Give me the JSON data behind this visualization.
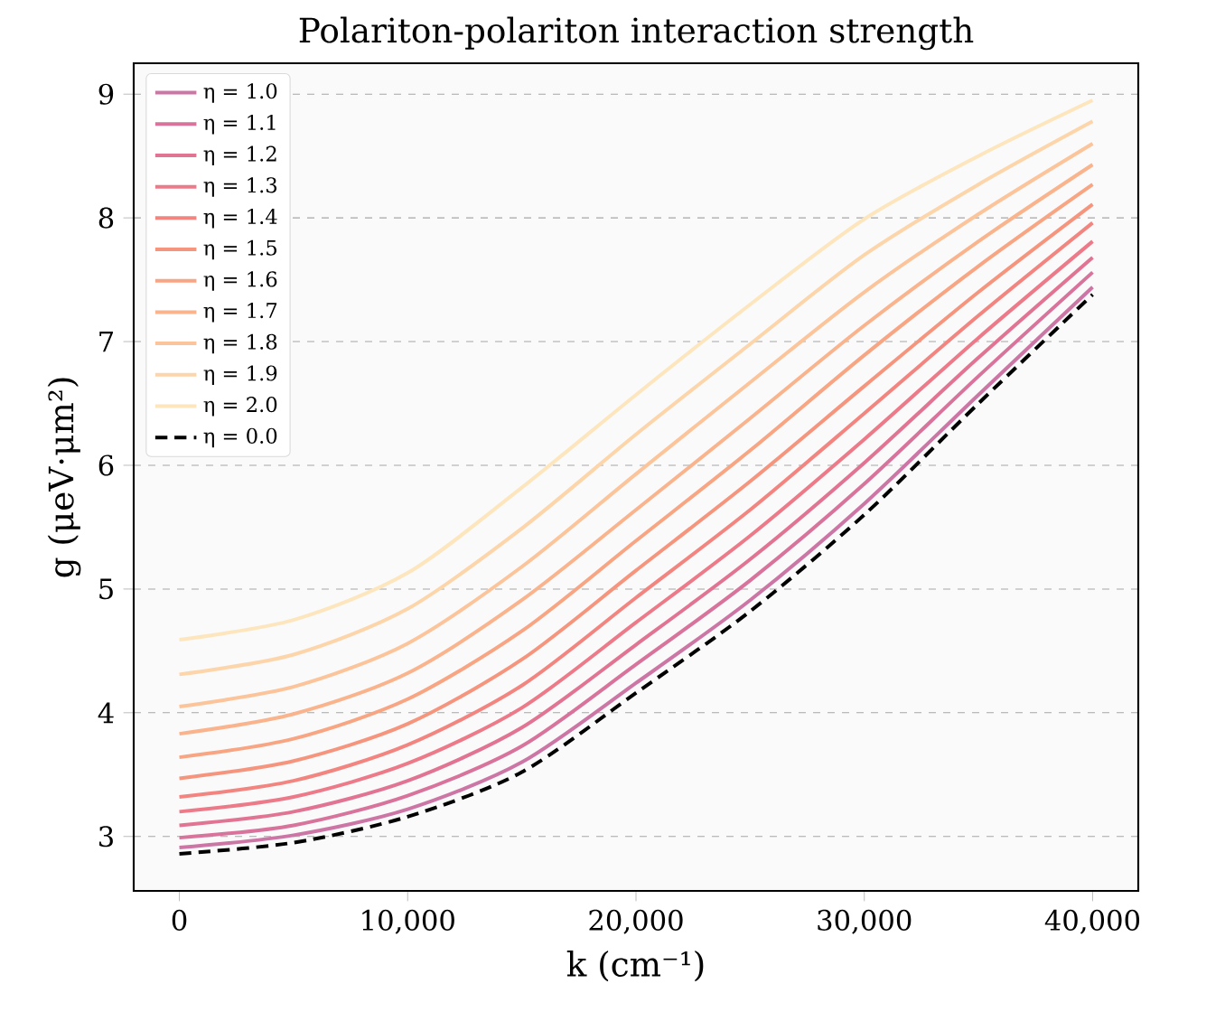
{
  "chart_data": {
    "type": "line",
    "title": "Polariton-polariton interaction strength",
    "xlabel": "k (cm⁻¹)",
    "ylabel": "g (μeV·μm²)",
    "x": [
      0,
      5000,
      10000,
      15000,
      20000,
      25000,
      30000,
      35000,
      40000
    ],
    "series": [
      {
        "name": "η = 1.0",
        "color": "#cc76a6",
        "values": [
          2.91,
          3.01,
          3.22,
          3.6,
          4.24,
          4.91,
          5.69,
          6.57,
          7.44
        ]
      },
      {
        "name": "η = 1.1",
        "color": "#d8739c",
        "values": [
          2.99,
          3.09,
          3.33,
          3.73,
          4.39,
          5.07,
          5.85,
          6.72,
          7.56
        ]
      },
      {
        "name": "η = 1.2",
        "color": "#e27493",
        "values": [
          3.09,
          3.2,
          3.45,
          3.88,
          4.55,
          5.24,
          6.02,
          6.87,
          7.68
        ]
      },
      {
        "name": "η = 1.3",
        "color": "#ec7a89",
        "values": [
          3.2,
          3.32,
          3.59,
          4.04,
          4.73,
          5.43,
          6.21,
          7.03,
          7.81
        ]
      },
      {
        "name": "η = 1.4",
        "color": "#f38580",
        "values": [
          3.32,
          3.45,
          3.74,
          4.22,
          4.93,
          5.64,
          6.42,
          7.21,
          7.96
        ]
      },
      {
        "name": "η = 1.5",
        "color": "#f6957e",
        "values": [
          3.47,
          3.61,
          3.91,
          4.43,
          5.15,
          5.87,
          6.64,
          7.4,
          8.11
        ]
      },
      {
        "name": "η = 1.6",
        "color": "#f8a583",
        "values": [
          3.64,
          3.79,
          4.11,
          4.66,
          5.39,
          6.12,
          6.89,
          7.61,
          8.27
        ]
      },
      {
        "name": "η = 1.7",
        "color": "#fab48d",
        "values": [
          3.83,
          3.99,
          4.32,
          4.91,
          5.64,
          6.38,
          7.13,
          7.81,
          8.43
        ]
      },
      {
        "name": "η = 1.8",
        "color": "#fcc49a",
        "values": [
          4.05,
          4.21,
          4.56,
          5.18,
          5.93,
          6.67,
          7.4,
          8.03,
          8.6
        ]
      },
      {
        "name": "η = 1.9",
        "color": "#fdd5aa",
        "values": [
          4.31,
          4.47,
          4.84,
          5.49,
          6.25,
          6.98,
          7.7,
          8.27,
          8.78
        ]
      },
      {
        "name": "η = 2.0",
        "color": "#fde6bd",
        "values": [
          4.59,
          4.75,
          5.13,
          5.82,
          6.57,
          7.3,
          7.99,
          8.5,
          8.95
        ]
      },
      {
        "name": "η = 0.0",
        "color": "#000000",
        "line_style": "dashed",
        "values": [
          2.86,
          2.95,
          3.16,
          3.52,
          4.16,
          4.82,
          5.6,
          6.5,
          7.38
        ]
      }
    ],
    "xlim": [
      -2000,
      42000
    ],
    "ylim": [
      2.56,
      9.25
    ],
    "xticks": [
      0,
      {
        "value": 10000,
        "label": "10,000"
      },
      {
        "value": 20000,
        "label": "20,000"
      },
      {
        "value": 30000,
        "label": "30,000"
      },
      {
        "value": 40000,
        "label": "40,000"
      }
    ],
    "yticks": [
      3,
      4,
      5,
      6,
      7,
      8,
      9
    ],
    "grid": "y",
    "legend": "top left",
    "marker": "none",
    "line_style": "solid"
  }
}
